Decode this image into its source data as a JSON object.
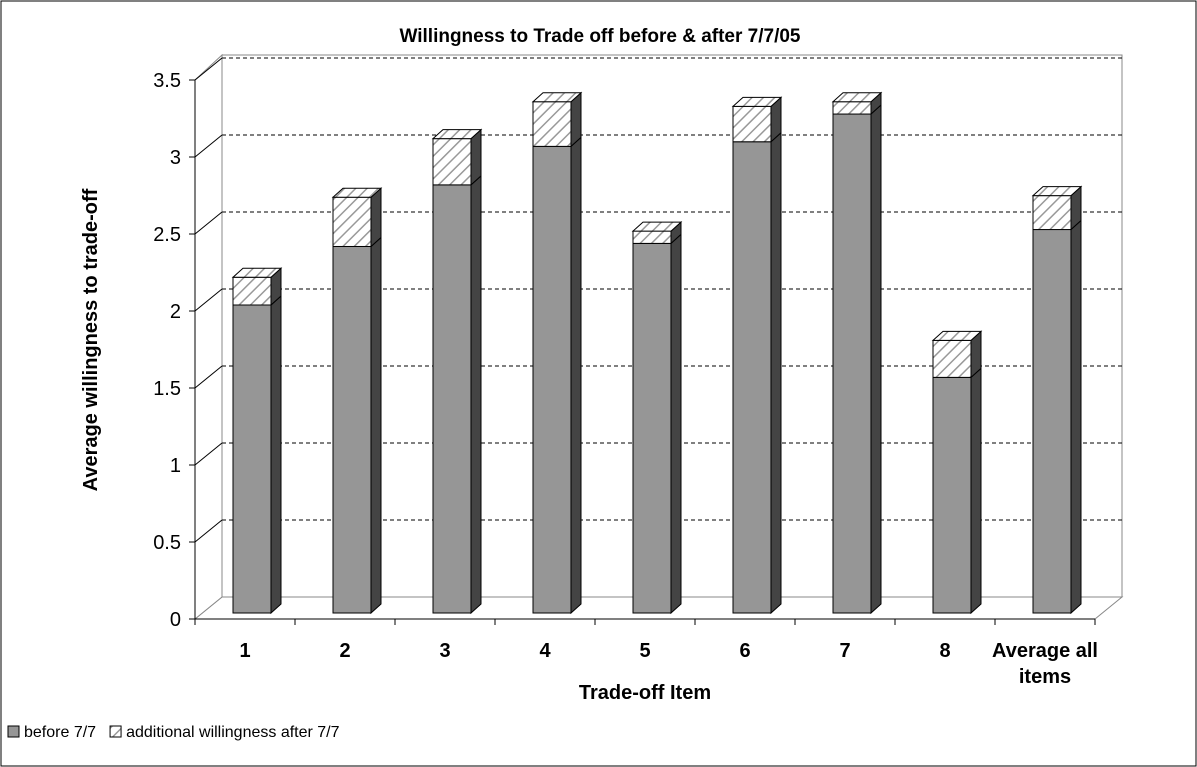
{
  "chart_data": {
    "type": "bar",
    "stacked": true,
    "title": "Willingness to Trade off before & after 7/7/05",
    "x_label": "Trade-off Item",
    "y_label": "Average willingness to trade-off",
    "categories": [
      "1",
      "2",
      "3",
      "4",
      "5",
      "6",
      "7",
      "8",
      "Average all items"
    ],
    "series": [
      {
        "name": "before 7/7",
        "color": "#969696",
        "values": [
          2.0,
          2.38,
          2.78,
          3.03,
          2.4,
          3.06,
          3.24,
          1.53,
          2.49
        ]
      },
      {
        "name": "additional willingness after 7/7",
        "color": "#ffffff",
        "values": [
          0.18,
          0.32,
          0.3,
          0.29,
          0.08,
          0.23,
          0.08,
          0.24,
          0.22
        ]
      }
    ],
    "ylim": [
      0,
      3.5
    ],
    "yticks": [
      0,
      0.5,
      1,
      1.5,
      2,
      2.5,
      3,
      3.5
    ],
    "grid": true,
    "legend": "bottom-left"
  }
}
